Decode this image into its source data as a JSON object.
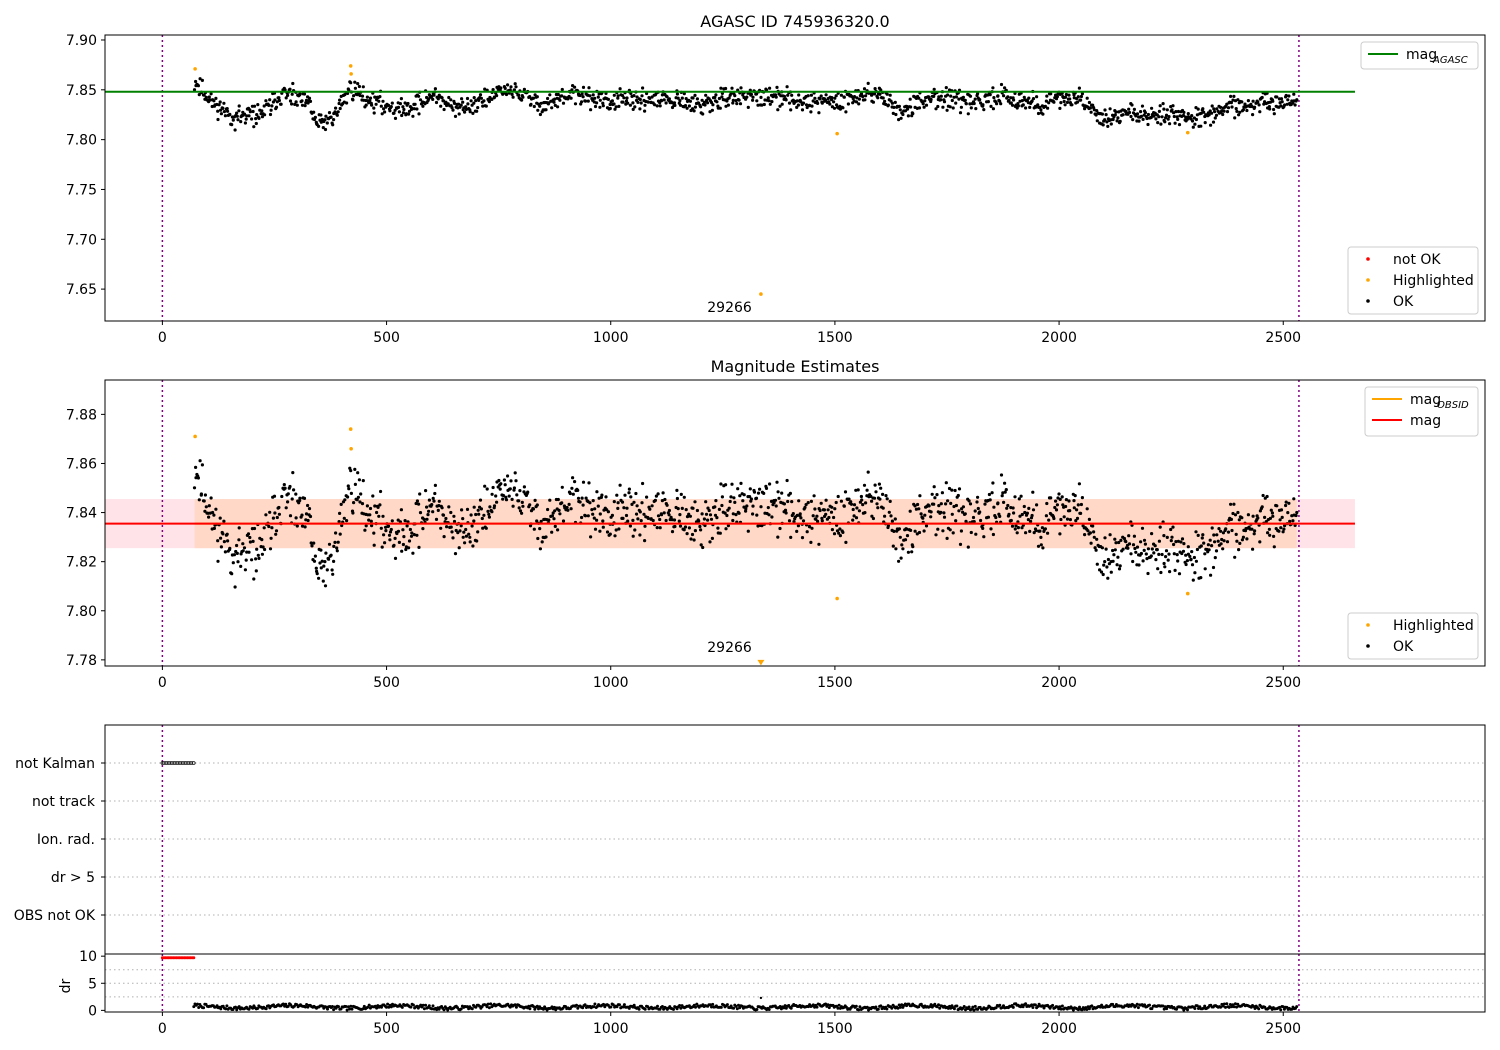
{
  "figure": {
    "title": "AGASC ID 745936320.0",
    "colors": {
      "ok": "#000000",
      "highlighted": "#ffa500",
      "not_ok": "#ff0000",
      "mag_agasc": "#008000",
      "mag": "#ff0000",
      "mag_obsid": "#ffa500",
      "band_mag": "#ffc0cb",
      "band_obsid": "#ffd0b0",
      "obs_boundary": "#800080"
    }
  },
  "chart_data": [
    {
      "id": "agasc_panel",
      "type": "scatter",
      "title": "AGASC ID 745936320.0",
      "xlabel": "",
      "ylabel": "",
      "xlim": [
        -128,
        2950
      ],
      "ylim": [
        7.618,
        7.905
      ],
      "xticks": [
        0,
        500,
        1000,
        1500,
        2000,
        2500
      ],
      "yticks": [
        "7.65",
        "7.70",
        "7.75",
        "7.80",
        "7.85",
        "7.90"
      ],
      "grid": false,
      "hlines": [
        {
          "name": "mag_AGASC",
          "y": 7.848,
          "x_end": 2660,
          "color": "#008000"
        }
      ],
      "vlines": [
        0,
        2535
      ],
      "obsid_annotation": {
        "text": "29266",
        "x": 1265,
        "y": 7.627
      },
      "series": [
        {
          "name": "not OK",
          "color": "#ff0000",
          "points": []
        },
        {
          "name": "Highlighted",
          "color": "#ffa500",
          "points": [
            [
              73,
              7.871
            ],
            [
              420,
              7.874
            ],
            [
              421,
              7.866
            ],
            [
              1335,
              7.645
            ],
            [
              1505,
              7.806
            ],
            [
              2287,
              7.807
            ]
          ]
        },
        {
          "name": "OK",
          "color": "#000000",
          "generated": {
            "x_start": 72,
            "x_end": 2530,
            "count": 1400,
            "scatter": 0.009
          }
        }
      ],
      "legend": [
        {
          "position": "top-right",
          "items": [
            {
              "label": "mag",
              "sub": "AGASC",
              "kind": "line",
              "color": "#008000"
            }
          ]
        },
        {
          "position": "lower-right",
          "items": [
            {
              "label": "not OK",
              "kind": "marker",
              "color": "#ff0000"
            },
            {
              "label": "Highlighted",
              "kind": "marker",
              "color": "#ffa500"
            },
            {
              "label": "OK",
              "kind": "marker",
              "color": "#000000"
            }
          ]
        }
      ]
    },
    {
      "id": "estimates_panel",
      "type": "scatter",
      "title": "Magnitude Estimates",
      "xlabel": "",
      "ylabel": "",
      "xlim": [
        -128,
        2950
      ],
      "ylim": [
        7.7775,
        7.894
      ],
      "xticks": [
        0,
        500,
        1000,
        1500,
        2000,
        2500
      ],
      "yticks": [
        "7.78",
        "7.80",
        "7.82",
        "7.84",
        "7.86",
        "7.88"
      ],
      "grid": false,
      "hlines": [
        {
          "name": "mag",
          "y": 7.8355,
          "x_end": 2660,
          "color": "#ff0000",
          "band": [
            7.8255,
            7.8455
          ]
        },
        {
          "name": "mag_OBSID",
          "y": 7.8355,
          "x_start": 72,
          "x_end": 2530,
          "color": "#ffa500",
          "band": [
            7.8255,
            7.8455
          ]
        }
      ],
      "vlines": [
        0,
        2535
      ],
      "obsid_annotation": {
        "text": "29266",
        "x": 1265,
        "y": 7.7815
      },
      "series": [
        {
          "name": "Highlighted",
          "color": "#ffa500",
          "points": [
            [
              73,
              7.871
            ],
            [
              420,
              7.874
            ],
            [
              421,
              7.866
            ],
            [
              1505,
              7.805
            ],
            [
              2287,
              7.807
            ],
            [
              1335,
              7.779
            ]
          ]
        },
        {
          "name": "OK",
          "color": "#000000",
          "generated": {
            "x_start": 72,
            "x_end": 2530,
            "count": 1400,
            "scatter": 0.009
          }
        }
      ],
      "legend": [
        {
          "position": "top-right",
          "items": [
            {
              "label": "mag",
              "sub": "OBSID",
              "kind": "line",
              "color": "#ffa500"
            },
            {
              "label": "mag",
              "kind": "line",
              "color": "#ff0000"
            }
          ]
        },
        {
          "position": "lower-right",
          "items": [
            {
              "label": "Highlighted",
              "kind": "marker",
              "color": "#ffa500"
            },
            {
              "label": "OK",
              "kind": "marker",
              "color": "#000000"
            }
          ]
        }
      ]
    },
    {
      "id": "flags_panel",
      "type": "scatter",
      "title": "",
      "xlim": [
        -128,
        2950
      ],
      "categories": [
        "not Kalman",
        "not track",
        "Ion. rad.",
        "dr > 5",
        "OBS not OK"
      ],
      "grid": true,
      "vlines": [
        0,
        2535
      ],
      "series": [
        {
          "name": "not Kalman",
          "color": "#000000",
          "x_start": 0,
          "x_end": 70
        }
      ]
    },
    {
      "id": "dr_panel",
      "type": "scatter",
      "title": "",
      "xlabel": "",
      "ylabel": "dr",
      "xlim": [
        -128,
        2950
      ],
      "ylim": [
        -0.3,
        10.4
      ],
      "xticks": [
        0,
        500,
        1000,
        1500,
        2000,
        2500
      ],
      "yticks": [
        "0",
        "5",
        "10"
      ],
      "grid": true,
      "vlines": [
        0,
        2535
      ],
      "series": [
        {
          "name": "dr",
          "color": "#000000",
          "generated": {
            "x_start": 70,
            "x_end": 2530,
            "count": 900,
            "mean": 0.65,
            "scatter": 0.35
          }
        },
        {
          "name": "dr (clipped)",
          "color": "#ff0000",
          "x_start": 0,
          "x_end": 70,
          "y": 9.7
        }
      ]
    }
  ]
}
